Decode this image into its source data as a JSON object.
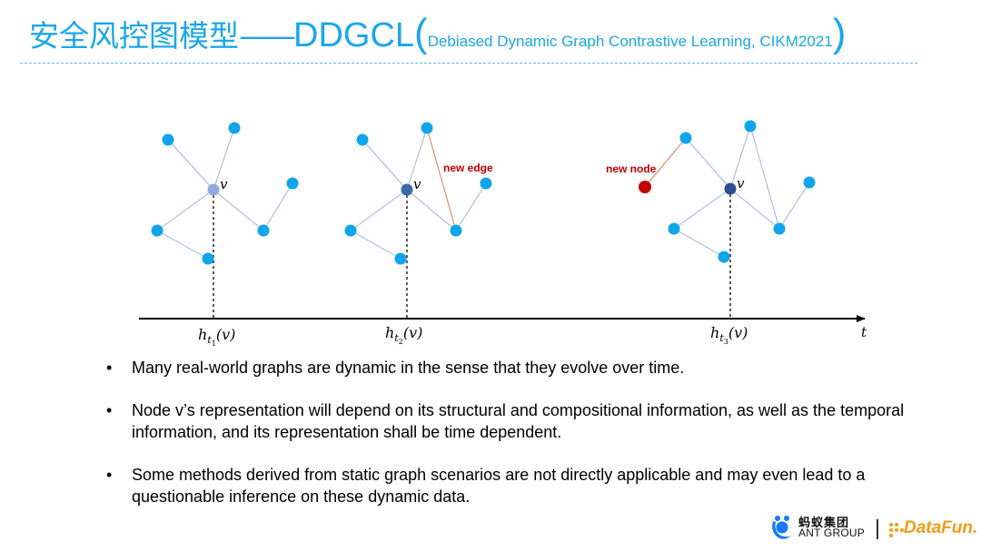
{
  "title": {
    "cn": "安全风控图模型",
    "dash": "——",
    "model": "DDGCL",
    "open_paren": "(",
    "subtitle": "Debiased Dynamic Graph Contrastive Learning, CIKM2021",
    "close_paren": ")"
  },
  "diagram": {
    "node_label": "v",
    "new_edge_label": "new edge",
    "new_node_label": "new node",
    "time_axis_label": "t",
    "snapshot_labels": [
      {
        "h": "h",
        "t": "t",
        "k": "1",
        "arg": "(v)"
      },
      {
        "h": "h",
        "t": "t",
        "k": "2",
        "arg": "(v)"
      },
      {
        "h": "h",
        "t": "t",
        "k": "3",
        "arg": "(v)"
      }
    ]
  },
  "bullets": [
    {
      "marker": "•",
      "text": "Many real-world graphs are dynamic in the sense that they evolve over time."
    },
    {
      "marker": "•",
      "text": "Node v’s representation will depend on its structural and compositional information, as well as the temporal information, and its representation shall be time dependent."
    },
    {
      "marker": "•",
      "text": "Some methods derived from static graph scenarios are not directly applicable and may even lead to a questionable inference on these dynamic data."
    }
  ],
  "logos": {
    "ant_cn": "蚂蚁集团",
    "ant_en": "ANT GROUP",
    "datafun": "DataFun."
  },
  "colors": {
    "title_blue": "#1aa7e8",
    "node_blue": "#0fa5ea",
    "center_node_1": "#8faadc",
    "center_node_2": "#3a6aa8",
    "center_node_3": "#2b4e8e",
    "new_node_red": "#c00000",
    "new_label_red": "#c00000",
    "edge_blue": "#9db4dc",
    "datafun_orange": "#f39c12"
  }
}
